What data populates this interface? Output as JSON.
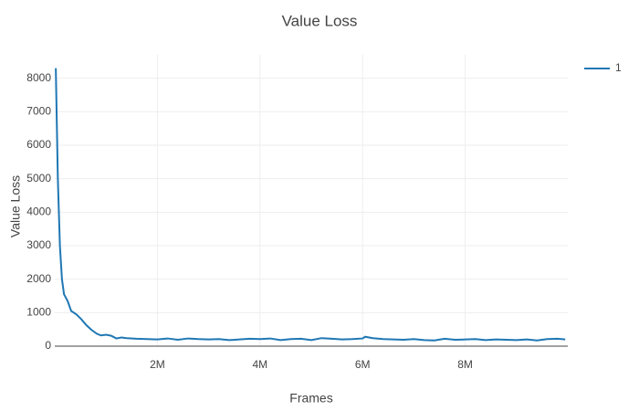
{
  "chart_data": {
    "type": "line",
    "title": "Value Loss",
    "x_label": "Frames",
    "y_label": "Value Loss",
    "x": [
      20000,
      60000,
      100000,
      140000,
      180000,
      250000,
      320000,
      420000,
      520000,
      620000,
      720000,
      820000,
      900000,
      1000000,
      1100000,
      1200000,
      1300000,
      1400000,
      1600000,
      1800000,
      2000000,
      2200000,
      2400000,
      2600000,
      2800000,
      3000000,
      3200000,
      3400000,
      3600000,
      3800000,
      4000000,
      4200000,
      4400000,
      4600000,
      4800000,
      5000000,
      5200000,
      5400000,
      5600000,
      5800000,
      6000000,
      6050000,
      6200000,
      6400000,
      6600000,
      6800000,
      7000000,
      7200000,
      7400000,
      7600000,
      7800000,
      8000000,
      8200000,
      8400000,
      8600000,
      8800000,
      9000000,
      9200000,
      9400000,
      9600000,
      9800000,
      9950000
    ],
    "series": [
      {
        "name": "1",
        "color": "#1f77b4",
        "values": [
          8300,
          5000,
          3000,
          2000,
          1550,
          1350,
          1050,
          950,
          800,
          620,
          480,
          370,
          320,
          340,
          310,
          230,
          260,
          240,
          220,
          210,
          200,
          230,
          190,
          230,
          210,
          200,
          210,
          180,
          200,
          220,
          210,
          230,
          180,
          210,
          220,
          180,
          240,
          220,
          200,
          210,
          230,
          280,
          240,
          210,
          200,
          190,
          210,
          180,
          170,
          220,
          190,
          200,
          210,
          180,
          200,
          190,
          180,
          200,
          170,
          210,
          220,
          200
        ]
      }
    ],
    "xlim": [
      0,
      10000000
    ],
    "ylim": [
      0,
      8700
    ],
    "xticks": [
      {
        "value": 2000000,
        "label": "2M"
      },
      {
        "value": 4000000,
        "label": "4M"
      },
      {
        "value": 6000000,
        "label": "6M"
      },
      {
        "value": 8000000,
        "label": "8M"
      }
    ],
    "yticks": [
      0,
      1000,
      2000,
      3000,
      4000,
      5000,
      6000,
      7000,
      8000
    ],
    "grid": true,
    "legend": "top-right"
  }
}
